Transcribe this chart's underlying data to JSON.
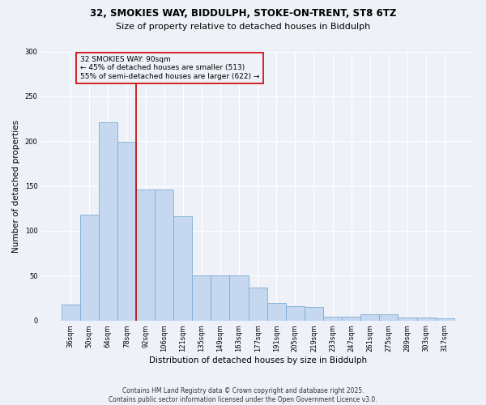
{
  "title_line1": "32, SMOKIES WAY, BIDDULPH, STOKE-ON-TRENT, ST8 6TZ",
  "title_line2": "Size of property relative to detached houses in Biddulph",
  "xlabel": "Distribution of detached houses by size in Biddulph",
  "ylabel": "Number of detached properties",
  "categories": [
    "36sqm",
    "50sqm",
    "64sqm",
    "78sqm",
    "92sqm",
    "106sqm",
    "121sqm",
    "135sqm",
    "149sqm",
    "163sqm",
    "177sqm",
    "191sqm",
    "205sqm",
    "219sqm",
    "233sqm",
    "247sqm",
    "261sqm",
    "275sqm",
    "289sqm",
    "303sqm",
    "317sqm"
  ],
  "values": [
    18,
    118,
    221,
    199,
    146,
    146,
    116,
    50,
    50,
    50,
    37,
    20,
    16,
    15,
    4,
    4,
    7,
    7,
    3,
    3,
    2
  ],
  "bar_color": "#c5d8f0",
  "bar_edge_color": "#7aadd4",
  "vline_index": 4,
  "annotation_line1": "32 SMOKIES WAY: 90sqm",
  "annotation_line2": "← 45% of detached houses are smaller (513)",
  "annotation_line3": "55% of semi-detached houses are larger (622) →",
  "vline_color": "#cc0000",
  "annotation_box_edge": "#cc0000",
  "footer": "Contains HM Land Registry data © Crown copyright and database right 2025.\nContains public sector information licensed under the Open Government Licence v3.0.",
  "ylim": [
    0,
    300
  ],
  "yticks": [
    0,
    50,
    100,
    150,
    200,
    250,
    300
  ],
  "bg_color": "#eef2f8",
  "grid_color": "#ffffff",
  "title1_fontsize": 8.5,
  "title2_fontsize": 8.0,
  "ylabel_fontsize": 7.5,
  "xlabel_fontsize": 7.5,
  "tick_fontsize": 6.0,
  "footer_fontsize": 5.5,
  "annot_fontsize": 6.5
}
